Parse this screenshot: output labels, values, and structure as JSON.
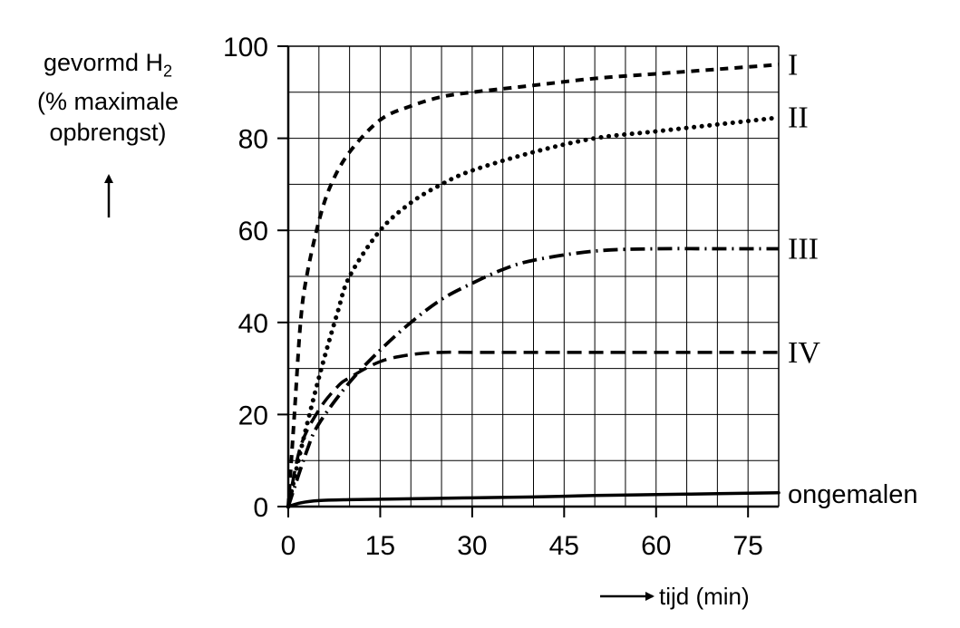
{
  "chart_data": {
    "type": "line",
    "ylabel_lines": [
      "gevormd H",
      "(% maximale",
      "opbrengst)"
    ],
    "ylabel_subscript": "2",
    "xlabel": "tijd (min)",
    "xlim": [
      0,
      80
    ],
    "ylim": [
      0,
      100
    ],
    "x_ticks": [
      "0",
      "15",
      "30",
      "45",
      "60",
      "75"
    ],
    "y_ticks": [
      "0",
      "20",
      "40",
      "60",
      "80",
      "100"
    ],
    "grid": true,
    "series": [
      {
        "name": "I",
        "style": "dashed-short",
        "x": [
          0,
          1,
          2,
          3,
          5,
          7,
          10,
          15,
          20,
          25,
          30,
          40,
          50,
          60,
          70,
          80
        ],
        "y": [
          0,
          20,
          40,
          50,
          62,
          70,
          77,
          84,
          87,
          89,
          90,
          91.5,
          93,
          94,
          95,
          96
        ]
      },
      {
        "name": "II",
        "style": "dotted",
        "x": [
          0,
          2,
          5,
          8,
          10,
          15,
          20,
          25,
          30,
          40,
          50,
          60,
          70,
          80
        ],
        "y": [
          0,
          12,
          28,
          42,
          50,
          60,
          66,
          70,
          73,
          77,
          80,
          81.5,
          83,
          84.5
        ]
      },
      {
        "name": "III",
        "style": "dash-dot",
        "x": [
          0,
          3,
          5,
          10,
          15,
          20,
          25,
          30,
          35,
          40,
          50,
          60,
          70,
          80
        ],
        "y": [
          0,
          12,
          18,
          27,
          34,
          40,
          45,
          48.5,
          51.5,
          53.5,
          55.5,
          56,
          56,
          56
        ]
      },
      {
        "name": "IV",
        "style": "dashed-long",
        "x": [
          0,
          2,
          5,
          8,
          10,
          15,
          20,
          25,
          30,
          40,
          50,
          60,
          70,
          80
        ],
        "y": [
          0,
          13,
          21,
          26,
          28,
          31.5,
          33,
          33.5,
          33.5,
          33.5,
          33.5,
          33.5,
          33.5,
          33.5
        ]
      },
      {
        "name": "ongemalen",
        "style": "solid",
        "x": [
          0,
          2,
          5,
          10,
          20,
          30,
          40,
          50,
          60,
          70,
          80
        ],
        "y": [
          0,
          0.8,
          1.3,
          1.5,
          1.7,
          1.9,
          2.1,
          2.4,
          2.6,
          2.8,
          3
        ]
      }
    ]
  }
}
